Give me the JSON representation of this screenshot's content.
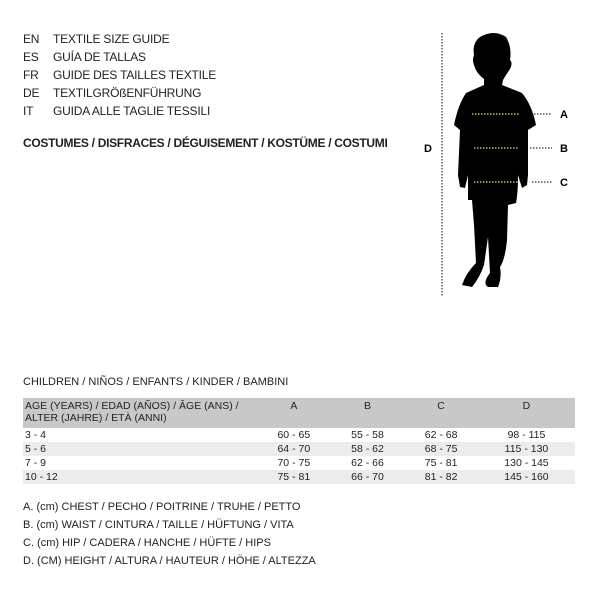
{
  "languages": [
    {
      "code": "EN",
      "text": "TEXTILE SIZE GUIDE"
    },
    {
      "code": "ES",
      "text": "GUÍA DE TALLAS"
    },
    {
      "code": "FR",
      "text": "GUIDE DES TAILLES TEXTILE"
    },
    {
      "code": "DE",
      "text": "TEXTILGRÖßENFÜHRUNG"
    },
    {
      "code": "IT",
      "text": "GUIDA ALLE TAGLIE TESSILI"
    }
  ],
  "category": "COSTUMES / DISFRACES / DÉGUISEMENT / KOSTÜME / COSTUMI",
  "figure": {
    "labels": {
      "a": "A",
      "b": "B",
      "c": "C",
      "d": "D"
    },
    "measure_line_color": "#e8e070"
  },
  "table": {
    "title": "CHILDREN / NIÑOS / ENFANTS / KINDER / BAMBINI",
    "headers": [
      "AGE (YEARS) / EDAD (AÑOS) / ÂGE (ANS) / ALTER (JAHRE) / ETÀ (ANNI)",
      "A",
      "B",
      "C",
      "D"
    ],
    "rows": [
      [
        "3 - 4",
        "60 - 65",
        "55 - 58",
        "62 - 68",
        "98 - 115"
      ],
      [
        "5 - 6",
        "64 - 70",
        "58 - 62",
        "68 - 75",
        "115 - 130"
      ],
      [
        "7 - 9",
        "70 - 75",
        "62 - 66",
        "75 - 81",
        "130 - 145"
      ],
      [
        "10 - 12",
        "75 - 81",
        "66 - 70",
        "81 - 82",
        "145 - 160"
      ]
    ]
  },
  "notes": [
    "A. (cm) CHEST / PECHO / POITRINE / TRUHE / PETTO",
    "B. (cm) WAIST / CINTURA / TAILLE / HÜFTUNG / VITA",
    "C. (cm) HIP / CADERA / HANCHE / HÜFTE / HIPS",
    "D. (CM) HEIGHT / ALTURA / HAUTEUR / HÖHE / ALTEZZA"
  ]
}
